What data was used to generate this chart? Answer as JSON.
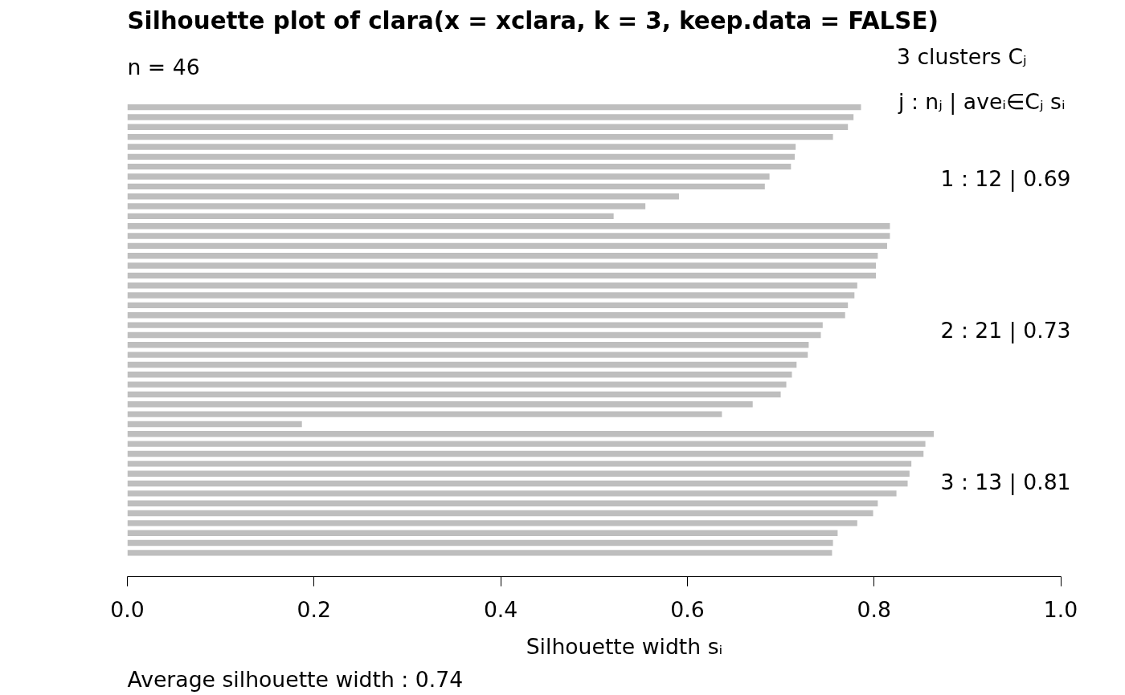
{
  "chart_data": {
    "type": "bar",
    "orientation": "horizontal",
    "title": "Silhouette plot of clara(x = xclara, k = 3, keep.data = FALSE)",
    "subtitle": "n = 46",
    "xlabel": "Silhouette width sᵢ",
    "categories": [
      null,
      null,
      null,
      null,
      null,
      null,
      null,
      null,
      null,
      null,
      null,
      null,
      null,
      null,
      null,
      null,
      null,
      null,
      null,
      null,
      null,
      null,
      null,
      null,
      null,
      null,
      null,
      null,
      null,
      null,
      null,
      null,
      null,
      null,
      null,
      null,
      null,
      null,
      null,
      null,
      null,
      null,
      null,
      null,
      null,
      null
    ],
    "values": [
      0.786,
      0.778,
      0.772,
      0.756,
      0.716,
      0.715,
      0.711,
      0.688,
      0.683,
      0.591,
      0.555,
      0.521,
      0.817,
      0.817,
      0.814,
      0.804,
      0.802,
      0.802,
      0.782,
      0.779,
      0.772,
      0.769,
      0.745,
      0.743,
      0.73,
      0.729,
      0.717,
      0.712,
      0.706,
      0.7,
      0.67,
      0.637,
      0.187,
      0.864,
      0.855,
      0.853,
      0.84,
      0.838,
      0.836,
      0.824,
      0.804,
      0.799,
      0.782,
      0.761,
      0.756,
      0.755
    ],
    "color": "#bebebe",
    "xlim": [
      0,
      1
    ],
    "xticks": [
      {
        "value": 0,
        "label": "0.0"
      },
      0.2,
      0.4,
      0.6,
      0.8,
      {
        "value": 1,
        "label": "1.0"
      }
    ],
    "grid": false,
    "tick_labels": "x",
    "annotations": [
      "3  clusters  Cⱼ",
      "j :  nⱼ | aveᵢ∈Cⱼ  sᵢ",
      "1 :   12  |  0.69",
      "2 :   21  |  0.73",
      "3 :   13  |  0.81",
      "Average silhouette width :  0.74"
    ]
  }
}
